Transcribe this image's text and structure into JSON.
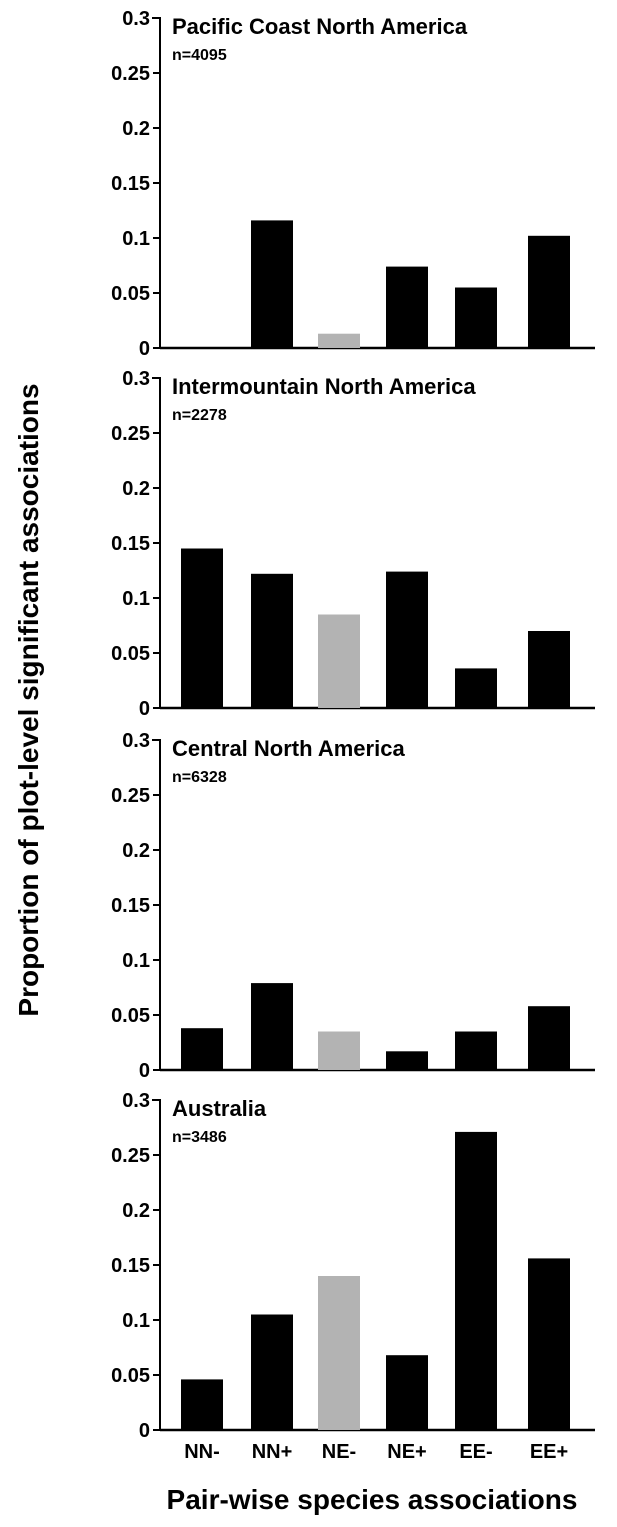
{
  "chart_data": {
    "type": "bar",
    "ylabel": "Proportion of plot-level significant associations",
    "xlabel": "Pair-wise species associations",
    "categories": [
      "NN-",
      "NN+",
      "NE-",
      "NE+",
      "EE-",
      "EE+"
    ],
    "ylim": [
      0,
      0.3
    ],
    "yticks": [
      "0",
      "0.05",
      "0.1",
      "0.15",
      "0.2",
      "0.25",
      "0.3"
    ],
    "bar_colors": [
      "#000000",
      "#000000",
      "#b3b3b3",
      "#000000",
      "#000000",
      "#000000"
    ],
    "grid": false,
    "panels": [
      {
        "title": "Pacific Coast North America",
        "n": "n=4095",
        "values": [
          0,
          0.116,
          0.013,
          0.074,
          0.055,
          0.102
        ]
      },
      {
        "title": "Intermountain North America",
        "n": "n=2278",
        "values": [
          0.145,
          0.122,
          0.085,
          0.124,
          0.036,
          0.07
        ]
      },
      {
        "title": "Central North America",
        "n": "n=6328",
        "values": [
          0.038,
          0.079,
          0.035,
          0.017,
          0.035,
          0.058
        ]
      },
      {
        "title": "Australia",
        "n": "n=3486",
        "values": [
          0.046,
          0.105,
          0.14,
          0.068,
          0.271,
          0.156
        ]
      }
    ]
  }
}
